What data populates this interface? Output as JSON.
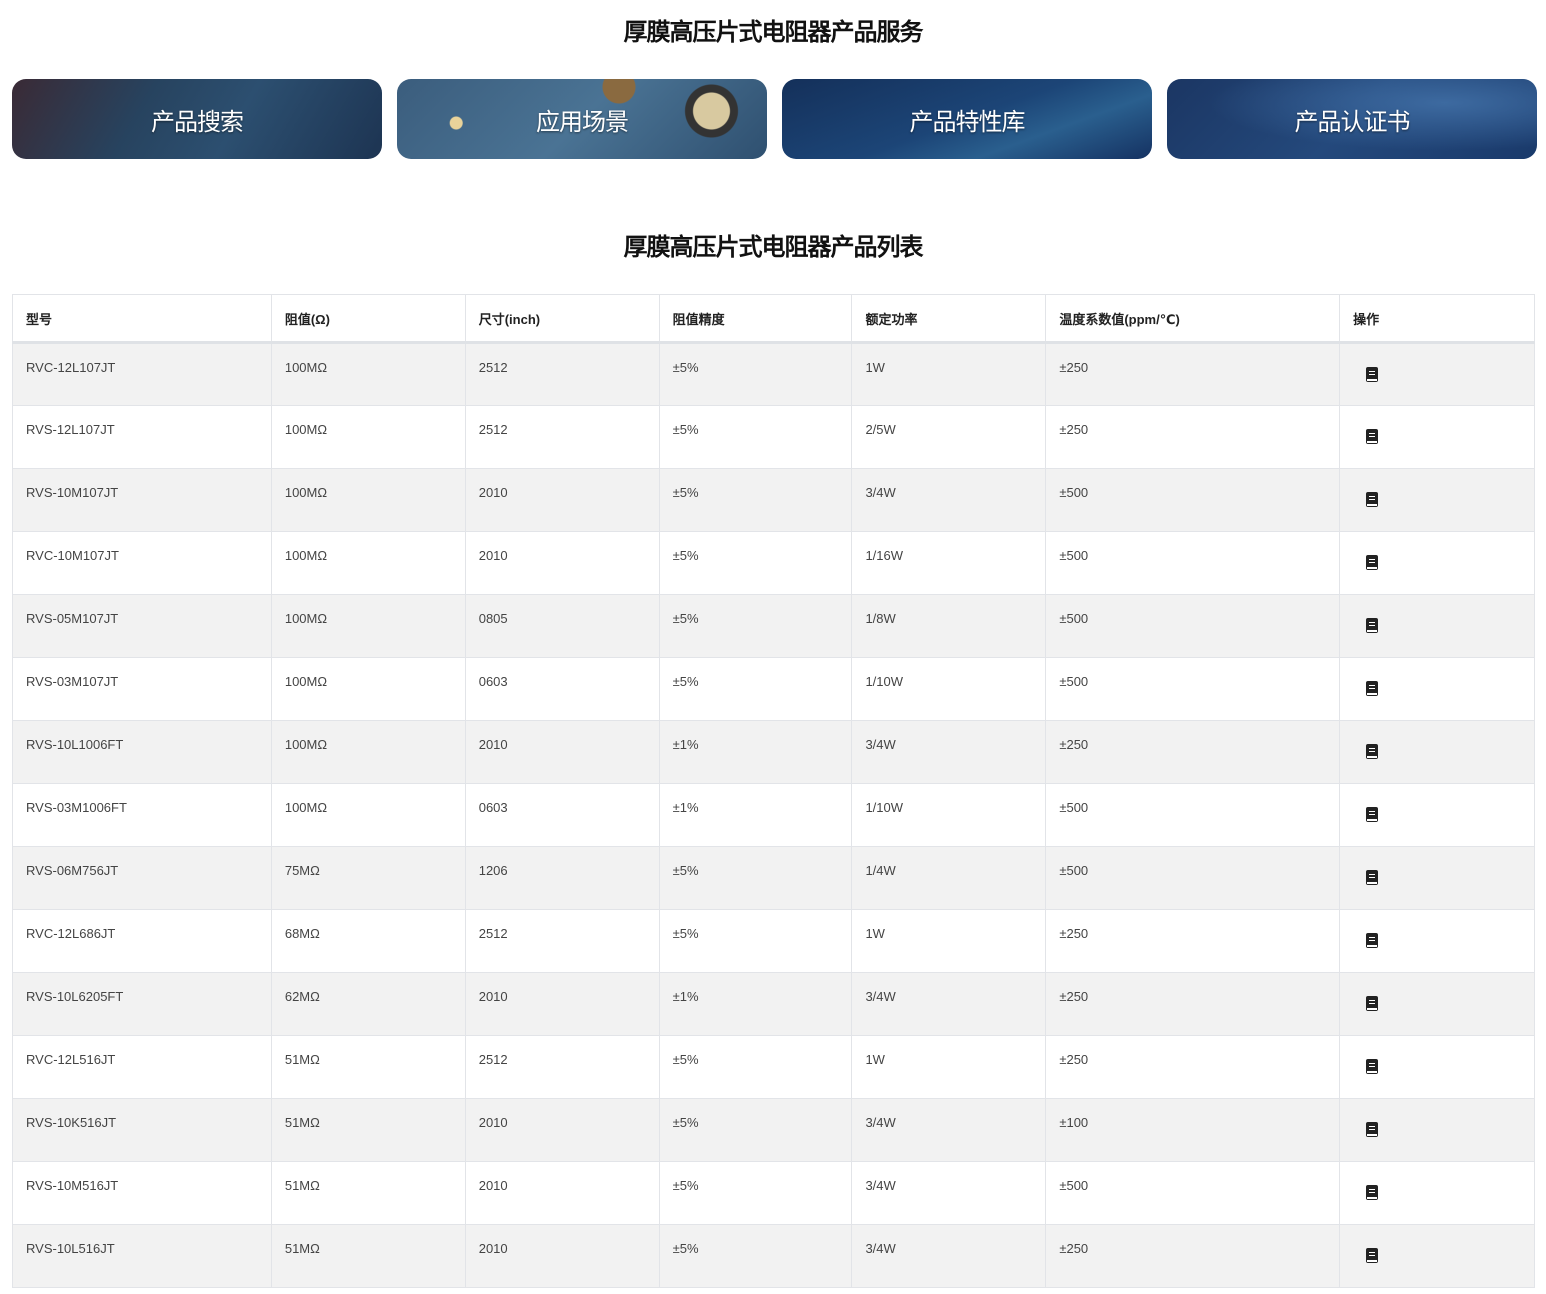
{
  "services": {
    "title": "厚膜高压片式电阻器产品服务",
    "cards": [
      "产品搜索",
      "应用场景",
      "产品特性库",
      "产品认证书"
    ]
  },
  "list": {
    "title": "厚膜高压片式电阻器产品列表",
    "headers": [
      "型号",
      "阻值(Ω)",
      "尺寸(inch)",
      "阻值精度",
      "额定功率",
      "温度系数值(ppm/℃)",
      "操作"
    ],
    "action_icon": "book-icon",
    "rows": [
      [
        "RVC-12L107JT",
        "100MΩ",
        "2512",
        "±5%",
        "1W",
        "±250"
      ],
      [
        "RVS-12L107JT",
        "100MΩ",
        "2512",
        "±5%",
        "2/5W",
        "±250"
      ],
      [
        "RVS-10M107JT",
        "100MΩ",
        "2010",
        "±5%",
        "3/4W",
        "±500"
      ],
      [
        "RVC-10M107JT",
        "100MΩ",
        "2010",
        "±5%",
        "1/16W",
        "±500"
      ],
      [
        "RVS-05M107JT",
        "100MΩ",
        "0805",
        "±5%",
        "1/8W",
        "±500"
      ],
      [
        "RVS-03M107JT",
        "100MΩ",
        "0603",
        "±5%",
        "1/10W",
        "±500"
      ],
      [
        "RVS-10L1006FT",
        "100MΩ",
        "2010",
        "±1%",
        "3/4W",
        "±250"
      ],
      [
        "RVS-03M1006FT",
        "100MΩ",
        "0603",
        "±1%",
        "1/10W",
        "±500"
      ],
      [
        "RVS-06M756JT",
        "75MΩ",
        "1206",
        "±5%",
        "1/4W",
        "±500"
      ],
      [
        "RVC-12L686JT",
        "68MΩ",
        "2512",
        "±5%",
        "1W",
        "±250"
      ],
      [
        "RVS-10L6205FT",
        "62MΩ",
        "2010",
        "±1%",
        "3/4W",
        "±250"
      ],
      [
        "RVC-12L516JT",
        "51MΩ",
        "2512",
        "±5%",
        "1W",
        "±250"
      ],
      [
        "RVS-10K516JT",
        "51MΩ",
        "2010",
        "±5%",
        "3/4W",
        "±100"
      ],
      [
        "RVS-10M516JT",
        "51MΩ",
        "2010",
        "±5%",
        "3/4W",
        "±500"
      ],
      [
        "RVS-10L516JT",
        "51MΩ",
        "2010",
        "±5%",
        "3/4W",
        "±250"
      ]
    ]
  }
}
